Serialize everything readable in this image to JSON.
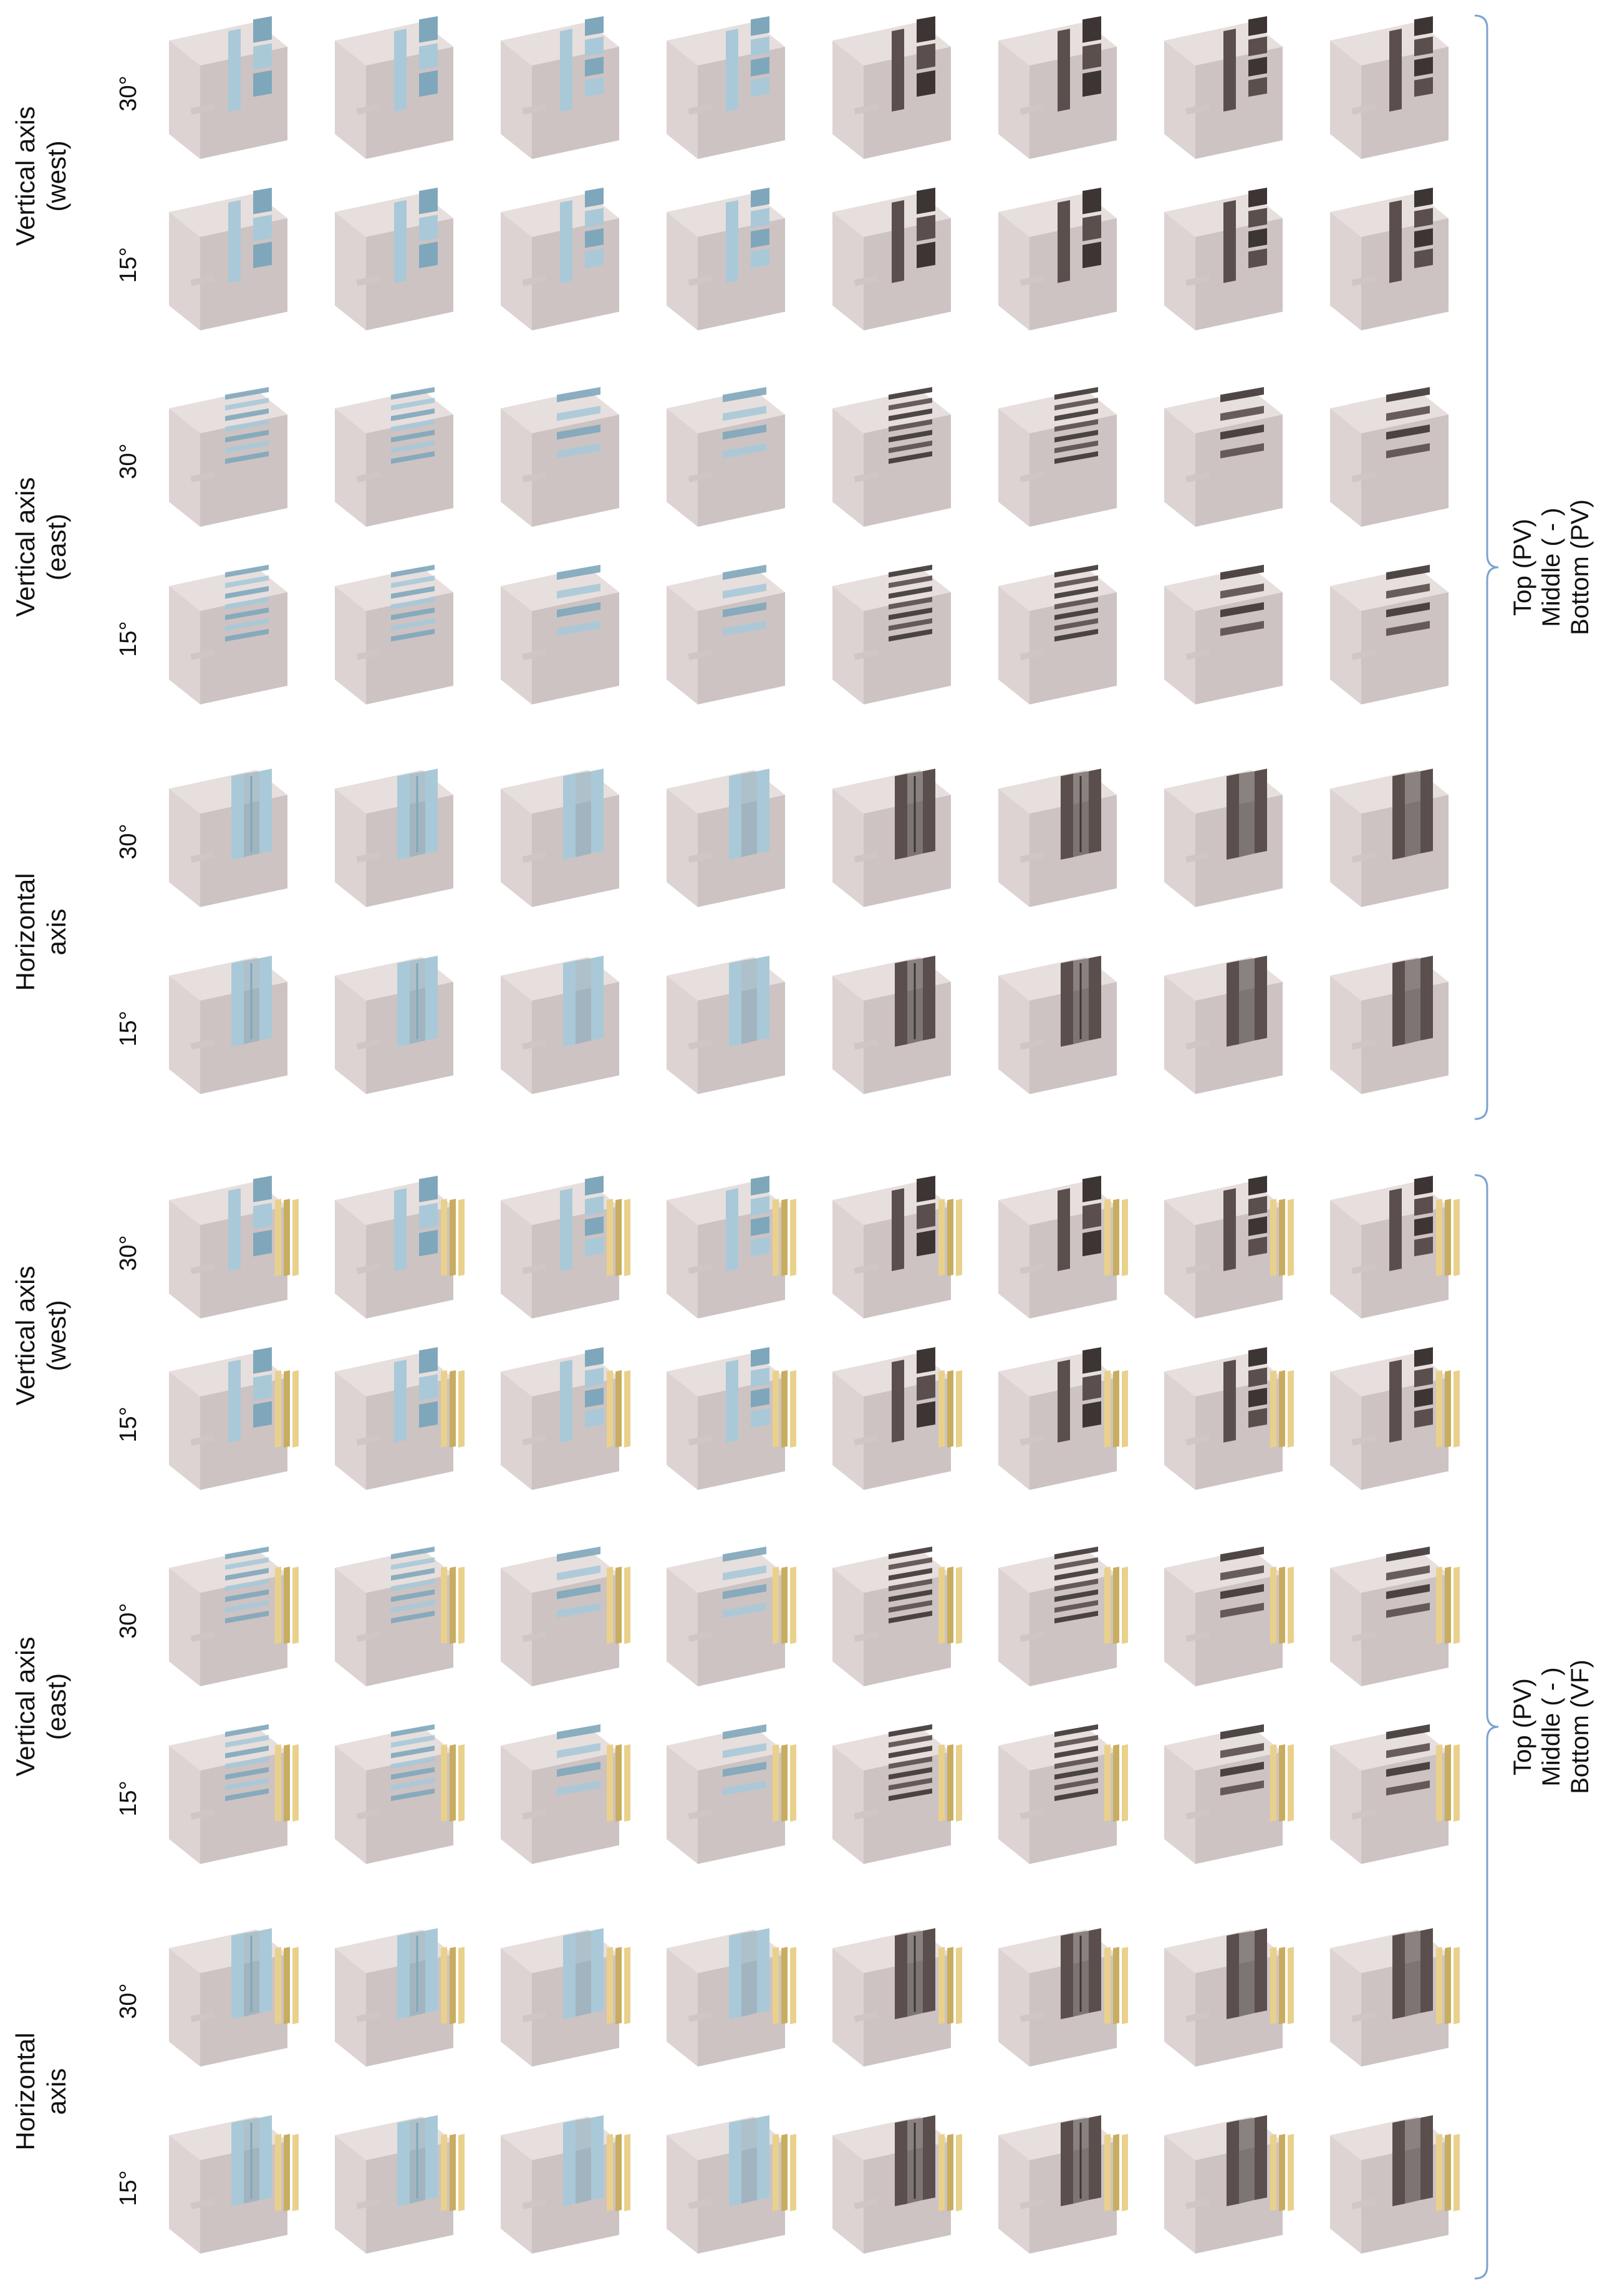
{
  "panels": [
    {
      "id": "upper",
      "groups": [
        {
          "label_line1": "Horizontal",
          "label_line2": "axis",
          "angles": [
            "15°",
            "30°"
          ],
          "design": "horizontal"
        },
        {
          "label_line1": "Vertical axis",
          "label_line2": "(east)",
          "angles": [
            "15°",
            "30°"
          ],
          "design": "louver"
        },
        {
          "label_line1": "Vertical axis",
          "label_line2": "(west)",
          "angles": [
            "15°",
            "30°"
          ],
          "design": "west"
        }
      ],
      "brace_line1": "Top (PV)",
      "brace_line2": "Middle ( - )",
      "brace_line3": "Bottom (PV)",
      "bottom_layer": "PV"
    },
    {
      "id": "lower",
      "groups": [
        {
          "label_line1": "Horizontal",
          "label_line2": "axis",
          "angles": [
            "15°",
            "30°"
          ],
          "design": "horizontal"
        },
        {
          "label_line1": "Vertical axis",
          "label_line2": "(east)",
          "angles": [
            "15°",
            "30°"
          ],
          "design": "louver"
        },
        {
          "label_line1": "Vertical axis",
          "label_line2": "(west)",
          "angles": [
            "15°",
            "30°"
          ],
          "design": "west"
        }
      ],
      "brace_line1": "Top (PV)",
      "brace_line2": "Middle ( - )",
      "brace_line3": "Bottom (VF)",
      "bottom_layer": "VF"
    }
  ],
  "columns": [
    {
      "material": "glass",
      "density": "dense"
    },
    {
      "material": "glass",
      "density": "dense"
    },
    {
      "material": "glass",
      "density": "sparse"
    },
    {
      "material": "glass",
      "density": "sparse"
    },
    {
      "material": "opaque",
      "density": "dense"
    },
    {
      "material": "opaque",
      "density": "dense"
    },
    {
      "material": "opaque",
      "density": "sparse"
    },
    {
      "material": "opaque",
      "density": "sparse"
    }
  ],
  "colors": {
    "building_top": "#e7dfdd",
    "building_left": "#dcd3d2",
    "building_right": "#cdc3c3",
    "glass": "#a9c9d8",
    "glass_dark": "#7fa7bb",
    "opaque": "#5a4f4c",
    "opaque_dark": "#3d3533",
    "vf": "#e9d18c",
    "vf_dark": "#c9ad5f",
    "brace": "#7ba3cf"
  }
}
